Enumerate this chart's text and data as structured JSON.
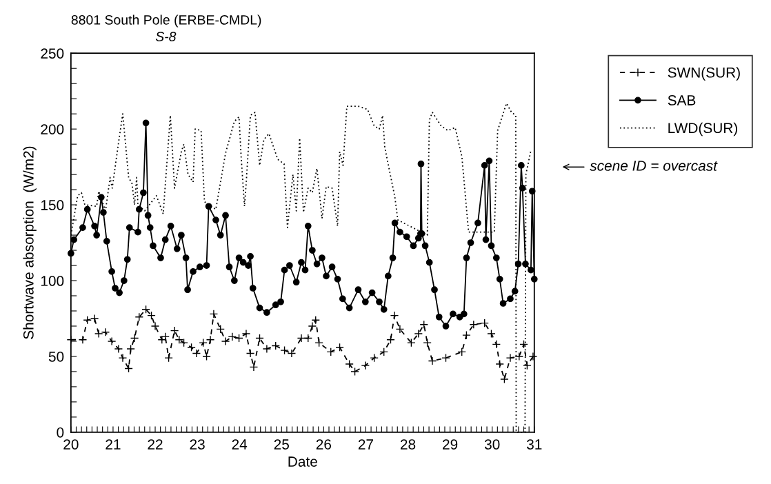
{
  "chart_data": {
    "type": "line",
    "title": "8801 South Pole (ERBE-CMDL)",
    "subtitle": "S-8",
    "xlabel": "Date",
    "ylabel": "Shortwave absorption  (W/m2)",
    "xlim": [
      20,
      31
    ],
    "ylim": [
      0,
      250
    ],
    "xticks": [
      20,
      {
        "value": 20.125,
        "label": null
      },
      {
        "value": 20.25,
        "label": null
      },
      {
        "value": 20.375,
        "label": null
      },
      {
        "value": 20.5,
        "label": null
      },
      {
        "value": 20.625,
        "label": null
      },
      {
        "value": 20.75,
        "label": null
      },
      {
        "value": 20.875,
        "label": null
      },
      21,
      {
        "value": 21.125,
        "label": null
      },
      {
        "value": 21.25,
        "label": null
      },
      {
        "value": 21.375,
        "label": null
      },
      {
        "value": 21.5,
        "label": null
      },
      {
        "value": 21.625,
        "label": null
      },
      {
        "value": 21.75,
        "label": null
      },
      {
        "value": 21.875,
        "label": null
      },
      22,
      {
        "value": 22.125,
        "label": null
      },
      {
        "value": 22.25,
        "label": null
      },
      {
        "value": 22.375,
        "label": null
      },
      {
        "value": 22.5,
        "label": null
      },
      {
        "value": 22.625,
        "label": null
      },
      {
        "value": 22.75,
        "label": null
      },
      {
        "value": 22.875,
        "label": null
      },
      23,
      {
        "value": 23.125,
        "label": null
      },
      {
        "value": 23.25,
        "label": null
      },
      {
        "value": 23.375,
        "label": null
      },
      {
        "value": 23.5,
        "label": null
      },
      {
        "value": 23.625,
        "label": null
      },
      {
        "value": 23.75,
        "label": null
      },
      {
        "value": 23.875,
        "label": null
      },
      24,
      {
        "value": 24.125,
        "label": null
      },
      {
        "value": 24.25,
        "label": null
      },
      {
        "value": 24.375,
        "label": null
      },
      {
        "value": 24.5,
        "label": null
      },
      {
        "value": 24.625,
        "label": null
      },
      {
        "value": 24.75,
        "label": null
      },
      {
        "value": 24.875,
        "label": null
      },
      25,
      {
        "value": 25.125,
        "label": null
      },
      {
        "value": 25.25,
        "label": null
      },
      {
        "value": 25.375,
        "label": null
      },
      {
        "value": 25.5,
        "label": null
      },
      {
        "value": 25.625,
        "label": null
      },
      {
        "value": 25.75,
        "label": null
      },
      {
        "value": 25.875,
        "label": null
      },
      26,
      {
        "value": 26.125,
        "label": null
      },
      {
        "value": 26.25,
        "label": null
      },
      {
        "value": 26.375,
        "label": null
      },
      {
        "value": 26.5,
        "label": null
      },
      {
        "value": 26.625,
        "label": null
      },
      {
        "value": 26.75,
        "label": null
      },
      {
        "value": 26.875,
        "label": null
      },
      27,
      {
        "value": 27.125,
        "label": null
      },
      {
        "value": 27.25,
        "label": null
      },
      {
        "value": 27.375,
        "label": null
      },
      {
        "value": 27.5,
        "label": null
      },
      {
        "value": 27.625,
        "label": null
      },
      {
        "value": 27.75,
        "label": null
      },
      {
        "value": 27.875,
        "label": null
      },
      28,
      {
        "value": 28.125,
        "label": null
      },
      {
        "value": 28.25,
        "label": null
      },
      {
        "value": 28.375,
        "label": null
      },
      {
        "value": 28.5,
        "label": null
      },
      {
        "value": 28.625,
        "label": null
      },
      {
        "value": 28.75,
        "label": null
      },
      {
        "value": 28.875,
        "label": null
      },
      29,
      {
        "value": 29.125,
        "label": null
      },
      {
        "value": 29.25,
        "label": null
      },
      {
        "value": 29.375,
        "label": null
      },
      {
        "value": 29.5,
        "label": null
      },
      {
        "value": 29.625,
        "label": null
      },
      {
        "value": 29.75,
        "label": null
      },
      {
        "value": 29.875,
        "label": null
      },
      30,
      {
        "value": 30.125,
        "label": null
      },
      {
        "value": 30.25,
        "label": null
      },
      {
        "value": 30.375,
        "label": null
      },
      {
        "value": 30.5,
        "label": null
      },
      {
        "value": 30.625,
        "label": null
      },
      {
        "value": 30.75,
        "label": null
      },
      {
        "value": 30.875,
        "label": null
      },
      31
    ],
    "yticks": [
      0,
      {
        "value": 10,
        "label": null
      },
      {
        "value": 20,
        "label": null
      },
      {
        "value": 30,
        "label": null
      },
      {
        "value": 40,
        "label": null
      },
      50,
      {
        "value": 60,
        "label": null
      },
      {
        "value": 70,
        "label": null
      },
      {
        "value": 80,
        "label": null
      },
      {
        "value": 90,
        "label": null
      },
      100,
      {
        "value": 110,
        "label": null
      },
      {
        "value": 120,
        "label": null
      },
      {
        "value": 130,
        "label": null
      },
      {
        "value": 140,
        "label": null
      },
      150,
      {
        "value": 160,
        "label": null
      },
      {
        "value": 170,
        "label": null
      },
      {
        "value": 180,
        "label": null
      },
      {
        "value": 190,
        "label": null
      },
      200,
      {
        "value": 210,
        "label": null
      },
      {
        "value": 220,
        "label": null
      },
      {
        "value": 230,
        "label": null
      },
      {
        "value": 240,
        "label": null
      },
      250
    ],
    "grid": false,
    "legend": "top right",
    "annotations": [
      "scene ID = overcast"
    ],
    "series": [
      {
        "name": "SWN(SUR)",
        "color": "#000000",
        "marker": "cross",
        "line_style": "dashed",
        "x": [
          20.0,
          20.28,
          20.39,
          20.56,
          20.66,
          20.82,
          20.97,
          21.13,
          21.23,
          21.37,
          21.42,
          21.51,
          21.62,
          21.78,
          21.91,
          22.0,
          22.16,
          22.24,
          22.32,
          22.46,
          22.57,
          22.68,
          22.86,
          22.98,
          23.14,
          23.22,
          23.31,
          23.39,
          23.55,
          23.67,
          23.83,
          23.99,
          24.16,
          24.26,
          24.34,
          24.48,
          24.65,
          24.86,
          25.07,
          25.24,
          25.47,
          25.63,
          25.73,
          25.81,
          25.89,
          26.17,
          26.38,
          26.61,
          26.74,
          26.99,
          27.2,
          27.43,
          27.59,
          27.68,
          27.81,
          28.08,
          28.25,
          28.38,
          28.46,
          28.58,
          28.9,
          29.28,
          29.39,
          29.56,
          29.82,
          29.98,
          30.1,
          30.18,
          30.29,
          30.43,
          30.64,
          30.75,
          30.83,
          30.97
        ],
        "values": [
          61,
          61,
          74,
          75,
          65,
          66,
          60,
          55,
          49,
          42,
          55,
          62,
          76,
          81,
          77,
          70,
          61,
          63,
          49,
          67,
          61,
          59,
          56,
          52,
          59,
          50,
          61,
          78,
          68,
          60,
          63,
          62,
          65,
          52,
          43,
          62,
          55,
          57,
          54,
          52,
          62,
          62,
          70,
          74,
          59,
          53,
          56,
          45,
          40,
          44,
          49,
          53,
          61,
          77,
          68,
          59,
          65,
          71,
          59,
          47,
          49,
          53,
          64,
          71,
          72,
          65,
          58,
          45,
          35,
          49,
          50,
          58,
          44,
          50
        ]
      },
      {
        "name": "SAB",
        "color": "#000000",
        "marker": "circle",
        "line_style": "solid",
        "x": [
          20.0,
          20.07,
          20.28,
          20.39,
          20.56,
          20.61,
          20.72,
          20.77,
          20.85,
          20.97,
          21.05,
          21.15,
          21.26,
          21.34,
          21.39,
          21.59,
          21.62,
          21.72,
          21.78,
          21.83,
          21.88,
          21.95,
          22.13,
          22.24,
          22.37,
          22.52,
          22.62,
          22.73,
          22.77,
          22.9,
          23.06,
          23.22,
          23.27,
          23.44,
          23.55,
          23.67,
          23.76,
          23.88,
          23.99,
          24.09,
          24.21,
          24.26,
          24.32,
          24.48,
          24.65,
          24.86,
          24.98,
          25.07,
          25.19,
          25.35,
          25.47,
          25.56,
          25.63,
          25.73,
          25.84,
          25.96,
          26.06,
          26.2,
          26.33,
          26.45,
          26.61,
          26.82,
          26.99,
          27.15,
          27.32,
          27.43,
          27.53,
          27.64,
          27.69,
          27.81,
          27.97,
          28.13,
          28.25,
          28.3,
          28.31,
          28.33,
          28.41,
          28.51,
          28.63,
          28.74,
          28.9,
          29.07,
          29.23,
          29.33,
          29.39,
          29.49,
          29.66,
          29.82,
          29.85,
          29.93,
          29.98,
          30.1,
          30.18,
          30.26,
          30.43,
          30.54,
          30.62,
          30.69,
          30.72,
          30.79,
          30.92,
          30.95,
          31.0
        ],
        "values": [
          118,
          127,
          135,
          147,
          136,
          130,
          155,
          145,
          126,
          106,
          95,
          92,
          100,
          114,
          135,
          132,
          147,
          158,
          204,
          143,
          135,
          123,
          115,
          127,
          136,
          121,
          130,
          115,
          94,
          106,
          109,
          110,
          149,
          140,
          130,
          143,
          109,
          100,
          115,
          112,
          110,
          116,
          95,
          82,
          79,
          84,
          86,
          107,
          110,
          99,
          112,
          107,
          136,
          120,
          111,
          115,
          103,
          109,
          101,
          88,
          82,
          94,
          86,
          92,
          86,
          81,
          103,
          115,
          138,
          132,
          129,
          123,
          128,
          131,
          177,
          131,
          123,
          112,
          94,
          76,
          70,
          78,
          76,
          78,
          115,
          125,
          138,
          176,
          127,
          179,
          123,
          115,
          101,
          85,
          88,
          93,
          111,
          176,
          161,
          111,
          107,
          159,
          101
        ]
      },
      {
        "name": "LWD(SUR)",
        "color": "#000000",
        "marker": "none",
        "line_style": "dotted",
        "x": [
          20.0,
          20.16,
          20.25,
          20.33,
          20.61,
          20.66,
          20.82,
          20.93,
          20.98,
          21.13,
          21.23,
          21.37,
          21.45,
          21.51,
          21.56,
          21.59,
          21.75,
          22.03,
          22.19,
          22.36,
          22.46,
          22.62,
          22.68,
          22.78,
          22.9,
          22.95,
          23.09,
          23.17,
          23.44,
          23.67,
          23.88,
          23.99,
          24.04,
          24.12,
          24.16,
          24.26,
          24.37,
          24.48,
          24.58,
          24.7,
          24.91,
          25.06,
          25.14,
          25.27,
          25.35,
          25.43,
          25.52,
          25.63,
          25.73,
          25.84,
          25.96,
          26.06,
          26.2,
          26.33,
          26.38,
          26.46,
          26.55,
          26.82,
          27.04,
          27.2,
          27.32,
          27.4,
          27.45,
          27.69,
          27.76,
          28.46,
          28.51,
          28.58,
          28.79,
          28.95,
          29.12,
          29.28,
          29.44,
          30.05,
          30.13,
          30.34,
          30.46,
          30.56,
          30.57,
          30.78,
          30.8,
          30.92
        ],
        "values": [
          130,
          156,
          158,
          150,
          149,
          159,
          146,
          168,
          161,
          191,
          210,
          168,
          164,
          150,
          168,
          150,
          146,
          156,
          144,
          209,
          161,
          185,
          190,
          170,
          165,
          200,
          199,
          152,
          147,
          184,
          205,
          208,
          182,
          149,
          164,
          209,
          211,
          176,
          193,
          197,
          180,
          177,
          135,
          170,
          146,
          194,
          145,
          161,
          158,
          174,
          141,
          162,
          161,
          136,
          185,
          176,
          215,
          215,
          213,
          202,
          200,
          209,
          188,
          155,
          140,
          130,
          206,
          211,
          202,
          199,
          201,
          182,
          132,
          132,
          199,
          217,
          211,
          209,
          0,
          0,
          170,
          186
        ]
      }
    ]
  }
}
